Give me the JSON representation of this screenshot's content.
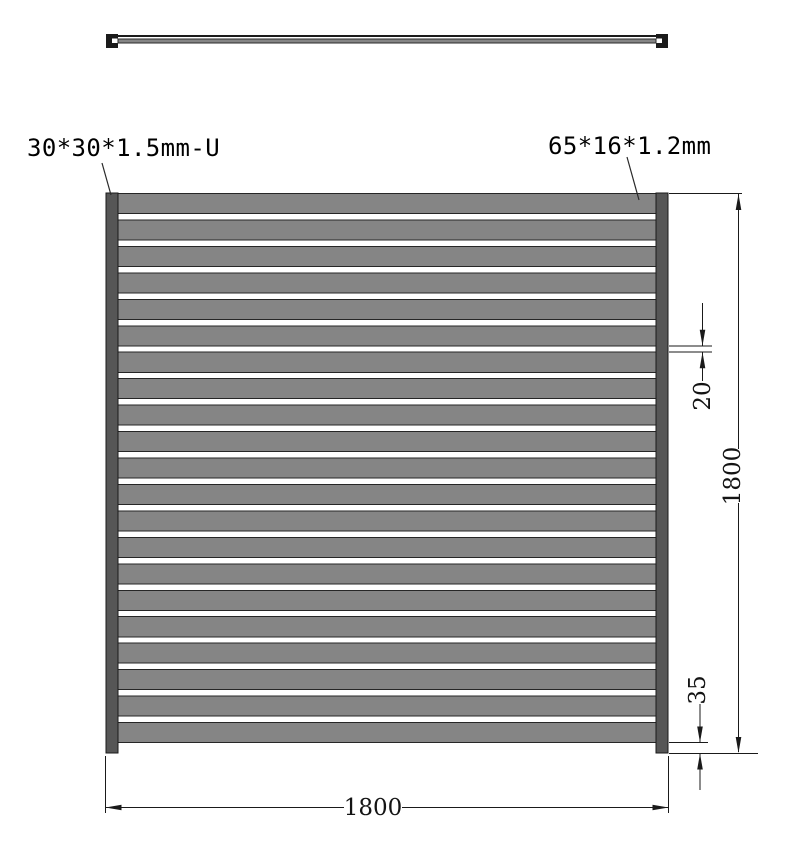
{
  "drawing": {
    "labels": {
      "post_spec": "30*30*1.5mm-U",
      "slat_spec": "65*16*1.2mm"
    },
    "dimensions": {
      "overall_width": "1800",
      "overall_height": "1800",
      "slat_gap": "20",
      "bottom_clearance": "35"
    },
    "panel": {
      "slat_count": 21,
      "gap_count": 20
    },
    "colors": {
      "line": "#1a1a1a",
      "slat_fill": "#858585",
      "post_fill": "#565656",
      "cap_fill": "#1b1b1b",
      "background": "#ffffff"
    }
  }
}
